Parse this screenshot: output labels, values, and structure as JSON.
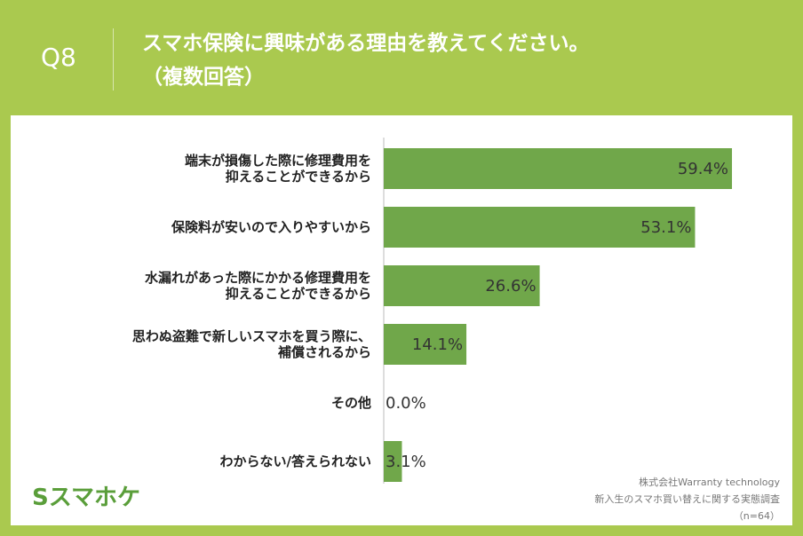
{
  "header": {
    "question": "Q8",
    "title": "スマホ保険に興味がある理由を教えてください。\n（複数回答）"
  },
  "chart_data": {
    "type": "bar",
    "orientation": "horizontal",
    "categories": [
      "端末が損傷した際に修理費用を\n抑えることができるから",
      "保険料が安いので入りやすいから",
      "水漏れがあった際にかかる修理費用を\n抑えることができるから",
      "思わぬ盗難で新しいスマホを買う際に、\n補償されるから",
      "その他",
      "わからない/答えられない"
    ],
    "values": [
      59.4,
      53.1,
      26.6,
      14.1,
      0,
      3.1
    ],
    "value_labels": [
      "59.4%",
      "53.1%",
      "26.6%",
      "14.1%",
      "0.0%",
      "3.1%"
    ],
    "color": "#70a74a",
    "xlim": [
      0,
      60
    ],
    "grid": false
  },
  "footer": {
    "logo": "Sスマホケ",
    "source": [
      "株式会社Warranty technology",
      "新入生のスマホ買い替えに関する実態調査",
      "（n=64）"
    ]
  }
}
